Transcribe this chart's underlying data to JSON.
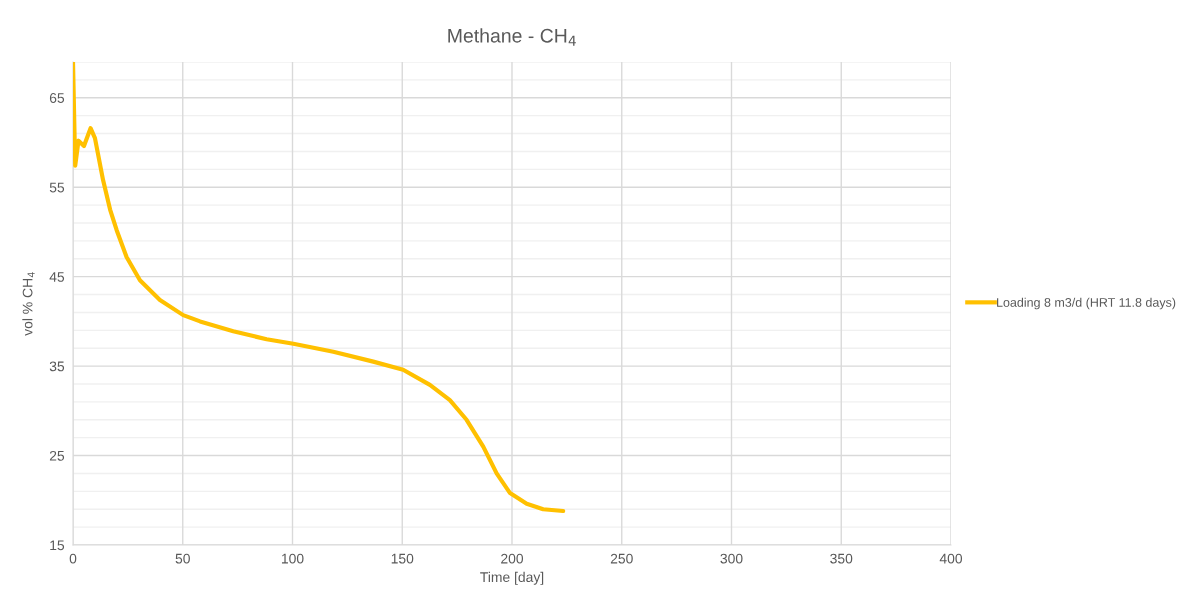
{
  "chart_data": {
    "type": "line",
    "title": "Methane - CH$_{4}$",
    "xlabel": "Time [day]",
    "ylabel": "vol % CH$_{4}$",
    "x": [
      0,
      1,
      2.5,
      5,
      8,
      10,
      13.7,
      16.9,
      19.9,
      24.4,
      30.5,
      39.6,
      50.2,
      57.9,
      73,
      88.2,
      100.4,
      118.6,
      136.8,
      150.4,
      162.6,
      171.7,
      179.3,
      186.9,
      193,
      199.1,
      206.7,
      214.2,
      223.3
    ],
    "series": [
      {
        "name": "Loading 8 m3/d (HRT 11.8 days)",
        "color": "#ffc000",
        "values": [
          69,
          57.4,
          60.2,
          59.6,
          61.6,
          60.5,
          55.8,
          52.5,
          50.2,
          47.2,
          44.6,
          42.4,
          40.7,
          40.0,
          38.9,
          38.0,
          37.5,
          36.6,
          35.5,
          34.6,
          32.9,
          31.2,
          29.0,
          26.0,
          23.0,
          20.8,
          19.6,
          19.0,
          18.8
        ]
      }
    ],
    "xlim": [
      0,
      400
    ],
    "xticks": [
      0,
      50,
      100,
      150,
      200,
      250,
      300,
      350,
      400
    ],
    "ylim": [
      15,
      69
    ],
    "yticks": [
      15,
      {
        "value": 17,
        "label": null
      },
      {
        "value": 19,
        "label": null
      },
      {
        "value": 21,
        "label": null
      },
      {
        "value": 23,
        "label": null
      },
      25,
      {
        "value": 27,
        "label": null
      },
      {
        "value": 29,
        "label": null
      },
      {
        "value": 31,
        "label": null
      },
      {
        "value": 33,
        "label": null
      },
      35,
      {
        "value": 37,
        "label": null
      },
      {
        "value": 39,
        "label": null
      },
      {
        "value": 41,
        "label": null
      },
      {
        "value": 43,
        "label": null
      },
      45,
      {
        "value": 47,
        "label": null
      },
      {
        "value": 49,
        "label": null
      },
      {
        "value": 51,
        "label": null
      },
      {
        "value": 53,
        "label": null
      },
      55,
      {
        "value": 57,
        "label": null
      },
      {
        "value": 59,
        "label": null
      },
      {
        "value": 61,
        "label": null
      },
      {
        "value": 63,
        "label": null
      },
      65,
      {
        "value": 67,
        "label": null
      },
      {
        "value": 69,
        "label": null
      }
    ],
    "grid": true,
    "legend": "right",
    "marker": "none",
    "line_style": "solid"
  }
}
